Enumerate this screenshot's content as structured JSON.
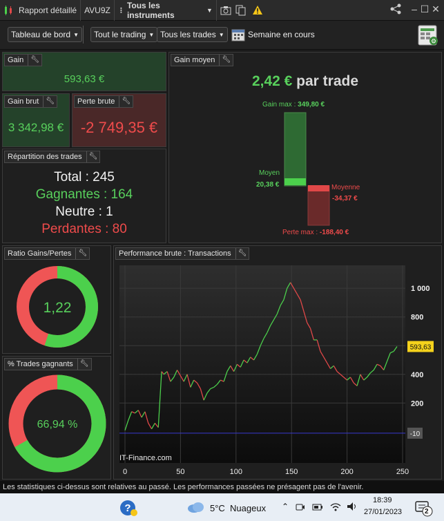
{
  "titlebar": {
    "report_label": "Rapport détaillé",
    "account": "AVU9Z",
    "instruments": "Tous les instruments",
    "minimize": "–",
    "maximize": "☐",
    "close": "✕"
  },
  "toolbar": {
    "dashboard": "Tableau de bord",
    "trading": "Tout le trading",
    "trades": "Tous les trades",
    "period": "Semaine en cours"
  },
  "panels": {
    "gain": {
      "title": "Gain",
      "value": "593,63 €"
    },
    "gain_moyen": {
      "title": "Gain moyen",
      "value": "2,42 €",
      "suffix": "par trade",
      "gain_max_label": "Gain max :",
      "gain_max_value": "349,80 €",
      "moyen_label": "Moyen",
      "moyen_value": "20,38 €",
      "moyenne_label": "Moyenne",
      "moyenne_value": "-34,37 €",
      "perte_max_label": "Perte max :",
      "perte_max_value": "-188,40 €"
    },
    "gain_brut": {
      "title": "Gain brut",
      "value": "3 342,98 €"
    },
    "perte_brute": {
      "title": "Perte brute",
      "value": "-2 749,35 €"
    },
    "repartition": {
      "title": "Répartition des trades",
      "total": "Total : 245",
      "gagnantes": "Gagnantes : 164",
      "neutre": "Neutre : 1",
      "perdantes": "Perdantes : 80"
    },
    "ratio": {
      "title": "Ratio Gains/Pertes",
      "value": "1,22",
      "fraction": 0.55
    },
    "winpct": {
      "title": "% Trades gagnants",
      "value": "66,94 %",
      "fraction": 0.6694
    },
    "performance": {
      "title": "Performance brute : Transactions",
      "watermark": "IT-Finance.com"
    }
  },
  "chart_data": {
    "type": "line",
    "title": "Performance brute : Transactions",
    "xlabel": "",
    "ylabel": "",
    "xlim": [
      0,
      250
    ],
    "ylim": [
      -150,
      1150
    ],
    "x_ticks": [
      0,
      50,
      100,
      150,
      200,
      250
    ],
    "y_ticks": [
      200,
      400,
      600,
      800,
      1000
    ],
    "y_tick_labels": [
      "200",
      "400",
      "600",
      "800",
      "1 000"
    ],
    "last_value_label": "593,63",
    "baseline_label": "-10",
    "baseline_value": -10,
    "colors": {
      "up": "#4cd04c",
      "down": "#e04848",
      "baseline": "#3a3ad0",
      "last_bg": "#f5d21c"
    },
    "series": [
      {
        "x": [
          0,
          3,
          6,
          9,
          12,
          15,
          18,
          21,
          24,
          27,
          30,
          33,
          35,
          38,
          41,
          44,
          47,
          50,
          53,
          56,
          59,
          62,
          65,
          68,
          71,
          74,
          77,
          80,
          83,
          86,
          89,
          92,
          95,
          98,
          101,
          104,
          107,
          110,
          113,
          116,
          119,
          122,
          125,
          128,
          131,
          134,
          137,
          140,
          143,
          146,
          149,
          152,
          155,
          158,
          161,
          164,
          167,
          170,
          173,
          176,
          179,
          182,
          185,
          188,
          191,
          194,
          197,
          200,
          203,
          206,
          209,
          212,
          215,
          218,
          221,
          224,
          227,
          230,
          233,
          236,
          239,
          242,
          245
        ],
        "y": [
          10,
          80,
          140,
          130,
          150,
          100,
          140,
          60,
          20,
          60,
          30,
          420,
          400,
          420,
          350,
          380,
          430,
          390,
          350,
          400,
          310,
          360,
          340,
          300,
          220,
          270,
          300,
          310,
          330,
          360,
          350,
          420,
          460,
          420,
          470,
          450,
          500,
          480,
          520,
          500,
          540,
          600,
          650,
          690,
          740,
          780,
          820,
          880,
          920,
          1000,
          1040,
          1000,
          960,
          920,
          840,
          760,
          720,
          640,
          640,
          560,
          520,
          480,
          440,
          460,
          420,
          400,
          380,
          360,
          380,
          340,
          320,
          400,
          360,
          380,
          410,
          430,
          470,
          460,
          430,
          490,
          550,
          560,
          594
        ],
        "dir": [
          "u",
          "u",
          "u",
          "d",
          "u",
          "d",
          "u",
          "d",
          "d",
          "u",
          "d",
          "u",
          "d",
          "u",
          "d",
          "u",
          "u",
          "d",
          "d",
          "u",
          "d",
          "u",
          "d",
          "d",
          "d",
          "u",
          "u",
          "u",
          "u",
          "u",
          "d",
          "u",
          "u",
          "d",
          "u",
          "d",
          "u",
          "d",
          "u",
          "d",
          "u",
          "u",
          "u",
          "u",
          "u",
          "u",
          "u",
          "u",
          "u",
          "u",
          "u",
          "d",
          "d",
          "d",
          "d",
          "d",
          "d",
          "d",
          "u",
          "d",
          "d",
          "d",
          "d",
          "u",
          "d",
          "d",
          "d",
          "d",
          "u",
          "d",
          "d",
          "u",
          "d",
          "u",
          "u",
          "u",
          "u",
          "d",
          "d",
          "u",
          "u",
          "u",
          "u"
        ]
      }
    ]
  },
  "disclaimer": "Les statistiques ci-dessus sont relatives au passé. Les performances passées ne présagent pas de l'avenir.",
  "taskbar": {
    "weather": "5°C  Nuageux",
    "time": "18:39",
    "date": "27/01/2023",
    "notifications": "2"
  }
}
